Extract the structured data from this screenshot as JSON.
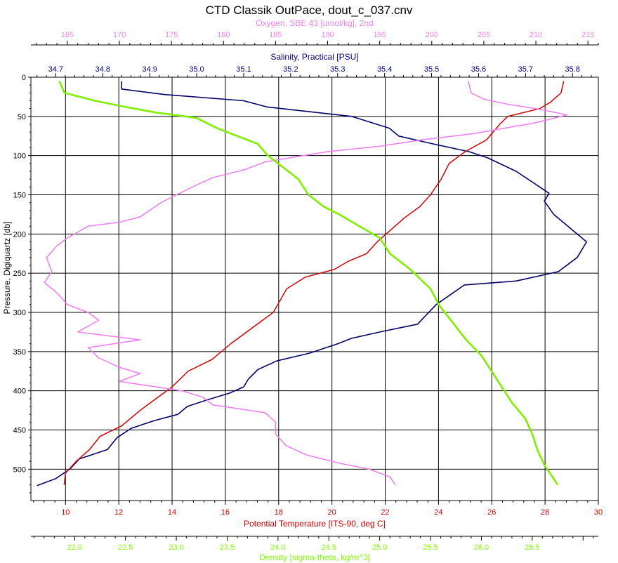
{
  "chart_data": {
    "type": "line",
    "title": "CTD Classik OutPace, dout_c_037.cnv",
    "y_axis": {
      "label": "Pressure, Digiquartz [db]",
      "range": [
        0,
        540
      ],
      "inverted": true,
      "ticks": [
        "0",
        "50",
        "100",
        "150",
        "200",
        "250",
        "300",
        "350",
        "400",
        "450",
        "500"
      ],
      "grid": true
    },
    "axes": {
      "oxygen": {
        "label": "Oxygen, SBE 43 [umol/kg], 2nd",
        "range": [
          161.5,
          216
        ],
        "ticks": [
          "165",
          "170",
          "175",
          "180",
          "185",
          "190",
          "195",
          "200",
          "205",
          "210",
          "215"
        ],
        "color": "#ee82ee"
      },
      "salinity": {
        "label": "Salinity, Practical [PSU]",
        "range": [
          34.647,
          35.855
        ],
        "ticks": [
          "34.7",
          "34.8",
          "34.9",
          "35.0",
          "35.1",
          "35.2",
          "35.3",
          "35.4",
          "35.5",
          "35.6",
          "35.7",
          "35.8"
        ],
        "color": "#000080"
      },
      "temperature": {
        "label": "Potential Temperature [ITS-90, deg C]",
        "range": [
          8.7,
          30
        ],
        "ticks": [
          "10",
          "12",
          "14",
          "16",
          "18",
          "20",
          "22",
          "24",
          "26",
          "28",
          "30"
        ],
        "color": "#cc0000"
      },
      "density": {
        "label": "Density [sigma-theta, kg/m^3]",
        "range": [
          21.57,
          27.15
        ],
        "ticks": [
          "22.0",
          "22.5",
          "23.0",
          "23.5",
          "24.0",
          "24.5",
          "25.0",
          "25.5",
          "26.0",
          "26.5"
        ],
        "color": "#80ff00"
      }
    },
    "series": [
      {
        "axis": "salinity",
        "points": [
          [
            34.84,
            5
          ],
          [
            34.84,
            15
          ],
          [
            34.93,
            22
          ],
          [
            35.1,
            30
          ],
          [
            35.15,
            38
          ],
          [
            35.33,
            50
          ],
          [
            35.41,
            65
          ],
          [
            35.43,
            75
          ],
          [
            35.51,
            86
          ],
          [
            35.58,
            95
          ],
          [
            35.62,
            103
          ],
          [
            35.68,
            120
          ],
          [
            35.73,
            140
          ],
          [
            35.75,
            148
          ],
          [
            35.74,
            158
          ],
          [
            35.76,
            175
          ],
          [
            35.8,
            195
          ],
          [
            35.83,
            210
          ],
          [
            35.81,
            230
          ],
          [
            35.77,
            248
          ],
          [
            35.68,
            260
          ],
          [
            35.57,
            265
          ],
          [
            35.51,
            290
          ],
          [
            35.47,
            315
          ],
          [
            35.39,
            325
          ],
          [
            35.33,
            333
          ],
          [
            35.3,
            340
          ],
          [
            35.24,
            352
          ],
          [
            35.17,
            362
          ],
          [
            35.13,
            373
          ],
          [
            35.11,
            385
          ],
          [
            35.1,
            395
          ],
          [
            35.07,
            403
          ],
          [
            35.02,
            412
          ],
          [
            34.98,
            420
          ],
          [
            34.96,
            430
          ],
          [
            34.91,
            438
          ],
          [
            34.86,
            448
          ],
          [
            34.83,
            460
          ],
          [
            34.81,
            475
          ],
          [
            34.75,
            487
          ],
          [
            34.73,
            500
          ],
          [
            34.7,
            512
          ],
          [
            34.66,
            521
          ]
        ]
      },
      {
        "axis": "temperature",
        "points": [
          [
            28.7,
            5
          ],
          [
            28.6,
            20
          ],
          [
            28.2,
            32
          ],
          [
            27.8,
            40
          ],
          [
            26.6,
            50
          ],
          [
            26.3,
            60
          ],
          [
            25.8,
            80
          ],
          [
            25.0,
            95
          ],
          [
            24.4,
            110
          ],
          [
            24.1,
            130
          ],
          [
            23.7,
            150
          ],
          [
            23.3,
            165
          ],
          [
            22.7,
            180
          ],
          [
            22.2,
            195
          ],
          [
            21.7,
            210
          ],
          [
            21.3,
            225
          ],
          [
            20.6,
            235
          ],
          [
            20.1,
            245
          ],
          [
            19.0,
            255
          ],
          [
            18.3,
            270
          ],
          [
            17.8,
            300
          ],
          [
            17.0,
            320
          ],
          [
            16.2,
            340
          ],
          [
            15.5,
            360
          ],
          [
            14.6,
            375
          ],
          [
            14.0,
            395
          ],
          [
            13.4,
            410
          ],
          [
            12.8,
            425
          ],
          [
            12.1,
            445
          ],
          [
            11.3,
            458
          ],
          [
            10.9,
            475
          ],
          [
            10.4,
            490
          ],
          [
            10.0,
            505
          ],
          [
            9.95,
            520
          ]
        ]
      },
      {
        "axis": "oxygen",
        "points": [
          [
            203.5,
            5
          ],
          [
            203.8,
            20
          ],
          [
            205.0,
            28
          ],
          [
            207.5,
            35
          ],
          [
            210.0,
            40
          ],
          [
            213.0,
            48
          ],
          [
            210.0,
            58
          ],
          [
            204.0,
            72
          ],
          [
            199.0,
            80
          ],
          [
            195.0,
            88
          ],
          [
            190.0,
            95
          ],
          [
            184.0,
            108
          ],
          [
            182.0,
            118
          ],
          [
            179.0,
            128
          ],
          [
            177.0,
            140
          ],
          [
            174.0,
            160
          ],
          [
            172.0,
            178
          ],
          [
            170.0,
            185
          ],
          [
            167.0,
            190
          ],
          [
            165.0,
            205
          ],
          [
            164.0,
            215
          ],
          [
            163.0,
            230
          ],
          [
            163.5,
            248
          ],
          [
            162.8,
            262
          ],
          [
            164.0,
            275
          ],
          [
            165.0,
            290
          ],
          [
            167.0,
            300
          ],
          [
            168.0,
            310
          ],
          [
            166.0,
            325
          ],
          [
            172.0,
            335
          ],
          [
            167.0,
            345
          ],
          [
            168.0,
            358
          ],
          [
            170.0,
            370
          ],
          [
            172.0,
            378
          ],
          [
            170.0,
            388
          ],
          [
            176.0,
            400
          ],
          [
            178.0,
            408
          ],
          [
            179.0,
            418
          ],
          [
            184.0,
            428
          ],
          [
            185.0,
            440
          ],
          [
            185.0,
            455
          ],
          [
            186.0,
            470
          ],
          [
            188.0,
            482
          ],
          [
            191.0,
            492
          ],
          [
            194.0,
            500
          ],
          [
            196.0,
            510
          ],
          [
            196.5,
            520
          ]
        ]
      },
      {
        "axis": "density",
        "points": [
          [
            21.85,
            5
          ],
          [
            21.9,
            20
          ],
          [
            22.2,
            30
          ],
          [
            22.5,
            38
          ],
          [
            22.8,
            45
          ],
          [
            23.2,
            52
          ],
          [
            23.4,
            65
          ],
          [
            23.8,
            85
          ],
          [
            23.9,
            100
          ],
          [
            24.05,
            115
          ],
          [
            24.2,
            130
          ],
          [
            24.3,
            150
          ],
          [
            24.45,
            165
          ],
          [
            24.6,
            175
          ],
          [
            24.8,
            190
          ],
          [
            25.0,
            205
          ],
          [
            25.1,
            225
          ],
          [
            25.3,
            245
          ],
          [
            25.5,
            270
          ],
          [
            25.58,
            290
          ],
          [
            25.7,
            310
          ],
          [
            25.85,
            335
          ],
          [
            26.0,
            355
          ],
          [
            26.1,
            375
          ],
          [
            26.2,
            395
          ],
          [
            26.3,
            415
          ],
          [
            26.43,
            435
          ],
          [
            26.5,
            455
          ],
          [
            26.55,
            475
          ],
          [
            26.62,
            495
          ],
          [
            26.7,
            510
          ],
          [
            26.75,
            520
          ]
        ]
      }
    ]
  }
}
